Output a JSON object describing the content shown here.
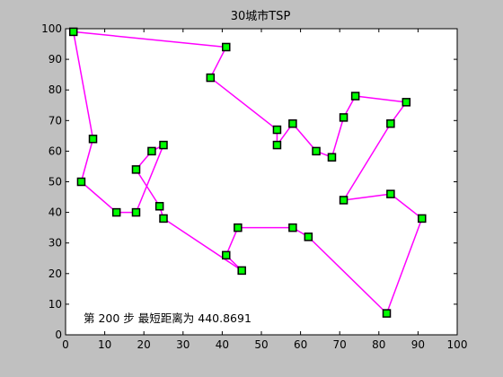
{
  "chart_data": {
    "type": "line",
    "title": "30城市TSP",
    "xlabel": "",
    "ylabel": "",
    "xlim": [
      0,
      100
    ],
    "ylim": [
      0,
      100
    ],
    "xticks": [
      0,
      10,
      20,
      30,
      40,
      50,
      60,
      70,
      80,
      90,
      100
    ],
    "yticks": [
      0,
      10,
      20,
      30,
      40,
      50,
      60,
      70,
      80,
      90,
      100
    ],
    "grid": false,
    "annotation": "第 200 步  最短距离为 440.8691",
    "colors": {
      "route": "#ff00ff",
      "marker_fill": "#00ff00",
      "marker_edge": "#000000",
      "background": "#c0c0c0",
      "plot_area": "#ffffff"
    },
    "route": [
      [
        2,
        99
      ],
      [
        41,
        94
      ],
      [
        37,
        84
      ],
      [
        54,
        67
      ],
      [
        54,
        62
      ],
      [
        58,
        69
      ],
      [
        64,
        60
      ],
      [
        68,
        58
      ],
      [
        71,
        71
      ],
      [
        74,
        78
      ],
      [
        87,
        76
      ],
      [
        83,
        69
      ],
      [
        71,
        44
      ],
      [
        83,
        46
      ],
      [
        91,
        38
      ],
      [
        82,
        7
      ],
      [
        62,
        32
      ],
      [
        58,
        35
      ],
      [
        44,
        35
      ],
      [
        41,
        26
      ],
      [
        45,
        21
      ],
      [
        25,
        38
      ],
      [
        24,
        42
      ],
      [
        18,
        54
      ],
      [
        22,
        60
      ],
      [
        25,
        62
      ],
      [
        18,
        40
      ],
      [
        13,
        40
      ],
      [
        4,
        50
      ],
      [
        7,
        64
      ],
      [
        2,
        99
      ]
    ]
  }
}
